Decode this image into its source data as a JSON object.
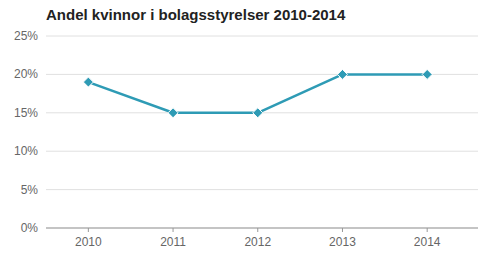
{
  "chart_data": {
    "type": "line",
    "title": "Andel kvinnor i bolagsstyrelser 2010-2014",
    "x": [
      2010,
      2011,
      2012,
      2013,
      2014
    ],
    "values": [
      0.19,
      0.15,
      0.15,
      0.2,
      0.2
    ],
    "color": "#2E9BB5",
    "marker": "diamond",
    "xlim": [
      2009.5,
      2014.6
    ],
    "xticks": [
      2010,
      2011,
      2012,
      2013,
      2014
    ],
    "ylim": [
      0,
      0.25
    ],
    "yticks": [
      {
        "value": 0,
        "label": "0%"
      },
      {
        "value": 0.05,
        "label": "5%"
      },
      {
        "value": 0.1,
        "label": "10%"
      },
      {
        "value": 0.15,
        "label": "15%"
      },
      {
        "value": 0.2,
        "label": "20%"
      },
      {
        "value": 0.25,
        "label": "25%"
      }
    ],
    "grid": true
  }
}
